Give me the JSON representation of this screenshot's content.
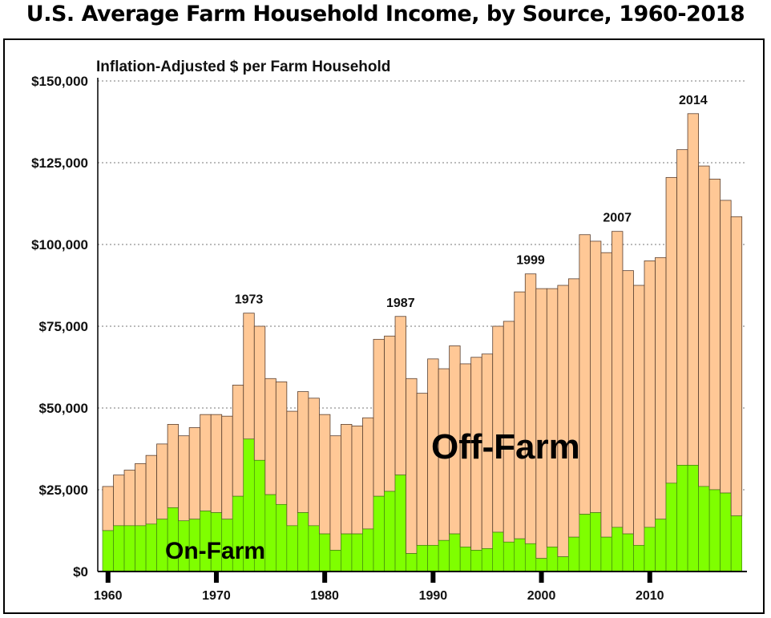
{
  "chart_data": {
    "type": "bar",
    "stacked": true,
    "title": "U.S. Average Farm Household Income, by Source, 1960-2018",
    "ylabel": "Inflation-Adjusted $ per Farm Household",
    "xlabel": "",
    "ylim": [
      0,
      150000
    ],
    "yticks": [
      "$0",
      "$25,000",
      "$50,000",
      "$75,000",
      "$100,000",
      "$125,000",
      "$150,000"
    ],
    "ytick_values": [
      0,
      25000,
      50000,
      75000,
      100000,
      125000,
      150000
    ],
    "xticks": [
      "1960",
      "1970",
      "1980",
      "1990",
      "2000",
      "2010"
    ],
    "xtick_values": [
      1960,
      1970,
      1980,
      1990,
      2000,
      2010
    ],
    "grid": "horizontal dotted",
    "x": [
      1960,
      1961,
      1962,
      1963,
      1964,
      1965,
      1966,
      1967,
      1968,
      1969,
      1970,
      1971,
      1972,
      1973,
      1974,
      1975,
      1976,
      1977,
      1978,
      1979,
      1980,
      1981,
      1982,
      1983,
      1984,
      1985,
      1986,
      1987,
      1988,
      1989,
      1990,
      1991,
      1992,
      1993,
      1994,
      1995,
      1996,
      1997,
      1998,
      1999,
      2000,
      2001,
      2002,
      2003,
      2004,
      2005,
      2006,
      2007,
      2008,
      2009,
      2010,
      2011,
      2012,
      2013,
      2014,
      2015,
      2016,
      2017,
      2018
    ],
    "series": [
      {
        "name": "On-Farm",
        "color": "#7fff00",
        "values": [
          12500,
          14000,
          14000,
          14000,
          14500,
          16000,
          19500,
          15500,
          16000,
          18500,
          18000,
          16000,
          23000,
          40500,
          34000,
          23500,
          20500,
          14000,
          18000,
          14000,
          11500,
          6500,
          11500,
          11500,
          13000,
          23000,
          24500,
          29500,
          5500,
          8000,
          8000,
          9500,
          11500,
          7500,
          6500,
          7000,
          12000,
          9000,
          10000,
          8500,
          4000,
          7500,
          4500,
          10500,
          17500,
          18000,
          10500,
          13500,
          11500,
          8000,
          13500,
          16000,
          27000,
          32500,
          32500,
          26000,
          25000,
          24000,
          17000
        ]
      },
      {
        "name": "Off-Farm",
        "color": "#ffc896",
        "values": [
          13500,
          15500,
          17000,
          19000,
          21000,
          23000,
          25500,
          26000,
          28000,
          29500,
          30000,
          31500,
          34000,
          38500,
          41000,
          35500,
          37500,
          35000,
          37000,
          39000,
          36500,
          35000,
          33500,
          33000,
          34000,
          48000,
          47500,
          48500,
          53500,
          46500,
          57000,
          52500,
          57500,
          56000,
          59000,
          59500,
          63000,
          67500,
          75500,
          82500,
          82500,
          79000,
          83000,
          79000,
          85500,
          83000,
          87000,
          90500,
          80500,
          79500,
          81500,
          80000,
          93500,
          96500,
          107500,
          98000,
          95000,
          89500,
          91500
        ]
      }
    ],
    "annotations": [
      "1973",
      "1987",
      "1999",
      "2007",
      "2014"
    ],
    "annotation_years": [
      1973,
      1987,
      1999,
      2007,
      2014
    ],
    "region_labels": [
      "Off-Farm",
      "On-Farm"
    ]
  }
}
